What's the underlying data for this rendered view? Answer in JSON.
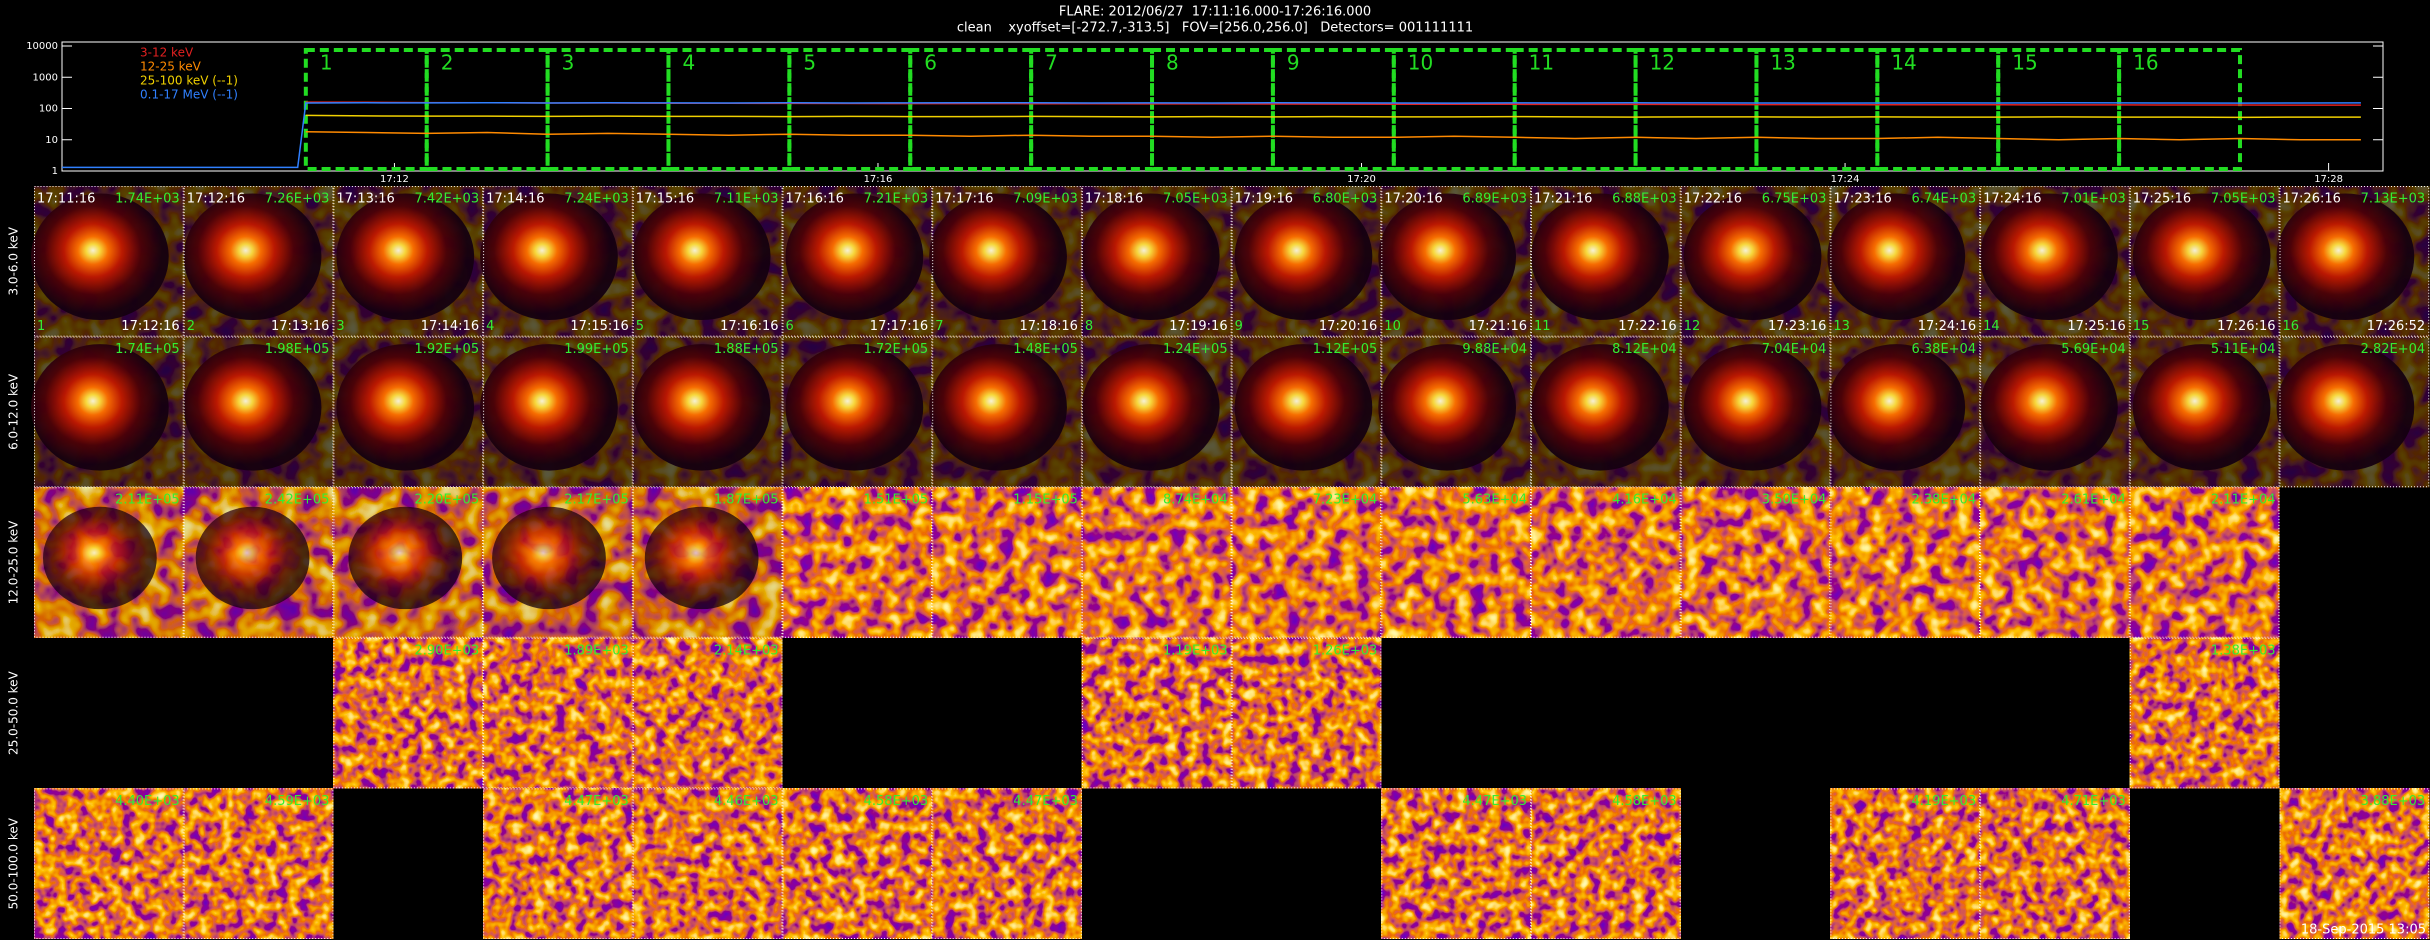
{
  "header": {
    "title": "FLARE: 2012/06/27  17:11:16.000-17:26:16.000",
    "subtitle": "clean    xyoffset=[-272.7,-313.5]   FOV=[256.0,256.0]   Detectors= 001111111"
  },
  "chart_data": {
    "type": "line",
    "log_y": true,
    "ylim": [
      1,
      10000
    ],
    "yticks": [
      1,
      10,
      100,
      1000,
      10000
    ],
    "xlim": [
      1029.25,
      1048.45
    ],
    "xticks": [
      {
        "value": 1032,
        "label": "17:12"
      },
      {
        "value": 1036,
        "label": "17:16"
      },
      {
        "value": 1040,
        "label": "17:20"
      },
      {
        "value": 1044,
        "label": "17:24"
      },
      {
        "value": 1048,
        "label": "17:28"
      }
    ],
    "x": [
      1029.25,
      1030,
      1031,
      1031.2,
      1031.267,
      1031.767,
      1032.267,
      1032.767,
      1033.267,
      1033.767,
      1034.267,
      1034.767,
      1035.267,
      1035.767,
      1036.267,
      1036.767,
      1037.267,
      1037.767,
      1038.267,
      1038.767,
      1039.267,
      1039.767,
      1040.267,
      1040.767,
      1041.267,
      1041.767,
      1042.267,
      1042.767,
      1043.267,
      1043.767,
      1044.267,
      1044.767,
      1045.267,
      1045.767,
      1046.267,
      1046.767,
      1047.267,
      1047.767,
      1048.267
    ],
    "series": [
      {
        "name": "3-12 keV",
        "color": "#e02020",
        "values": [
          null,
          null,
          null,
          null,
          160,
          158,
          155,
          152,
          150,
          150,
          148,
          147,
          146,
          145,
          144,
          143,
          142,
          141,
          140,
          140,
          139,
          138,
          137,
          137,
          136,
          135,
          135,
          134,
          133,
          133,
          132,
          131,
          131,
          130,
          130,
          129,
          129,
          128,
          128
        ]
      },
      {
        "name": "12-25 keV",
        "color": "#ff8a00",
        "values": [
          null,
          null,
          null,
          null,
          18,
          17,
          16,
          17,
          15,
          16,
          15,
          14,
          15,
          14,
          14,
          13,
          14,
          13,
          13,
          12,
          13,
          12,
          12,
          13,
          12,
          11,
          12,
          11,
          12,
          11,
          11,
          12,
          11,
          10,
          11,
          10,
          11,
          10,
          10
        ]
      },
      {
        "name": "25-100 keV (--1)",
        "color": "#f0d000",
        "values": [
          null,
          null,
          null,
          null,
          60,
          58,
          57,
          57,
          56,
          57,
          56,
          56,
          55,
          56,
          55,
          55,
          56,
          55,
          54,
          55,
          54,
          55,
          54,
          54,
          55,
          54,
          53,
          54,
          54,
          53,
          54,
          53,
          53,
          54,
          53,
          53,
          52,
          53,
          53
        ]
      },
      {
        "name": "0.1-17 MeV (--1)",
        "color": "#3080ff",
        "values": [
          1.3,
          1.3,
          1.3,
          1.3,
          150,
          152,
          151,
          153,
          150,
          152,
          151,
          150,
          152,
          150,
          151,
          153,
          152,
          150,
          151,
          150,
          152,
          151,
          150,
          149,
          151,
          150,
          152,
          151,
          150,
          149,
          150,
          151,
          150,
          152,
          151,
          150,
          149,
          150,
          151
        ]
      }
    ],
    "interval_color": "#22dd22",
    "intervals": [
      {
        "label": "1",
        "start": 1031.267,
        "end": 1032.267
      },
      {
        "label": "2",
        "start": 1032.267,
        "end": 1033.267
      },
      {
        "label": "3",
        "start": 1033.267,
        "end": 1034.267
      },
      {
        "label": "4",
        "start": 1034.267,
        "end": 1035.267
      },
      {
        "label": "5",
        "start": 1035.267,
        "end": 1036.267
      },
      {
        "label": "6",
        "start": 1036.267,
        "end": 1037.267
      },
      {
        "label": "7",
        "start": 1037.267,
        "end": 1038.267
      },
      {
        "label": "8",
        "start": 1038.267,
        "end": 1039.267
      },
      {
        "label": "9",
        "start": 1039.267,
        "end": 1040.267
      },
      {
        "label": "10",
        "start": 1040.267,
        "end": 1041.267
      },
      {
        "label": "11",
        "start": 1041.267,
        "end": 1042.267
      },
      {
        "label": "12",
        "start": 1042.267,
        "end": 1043.267
      },
      {
        "label": "13",
        "start": 1043.267,
        "end": 1044.267
      },
      {
        "label": "14",
        "start": 1044.267,
        "end": 1045.267
      },
      {
        "label": "15",
        "start": 1045.267,
        "end": 1046.267
      },
      {
        "label": "16",
        "start": 1046.267,
        "end": 1047.267
      }
    ]
  },
  "panels": {
    "rows": [
      {
        "label": "3.0-6.0 keV",
        "cells": [
          {
            "index": "1",
            "start": "17:11:16",
            "end": "17:12:16",
            "value": "1.74E+03"
          },
          {
            "index": "2",
            "start": "17:12:16",
            "end": "17:13:16",
            "value": "7.26E+03"
          },
          {
            "index": "3",
            "start": "17:13:16",
            "end": "17:14:16",
            "value": "7.42E+03"
          },
          {
            "index": "4",
            "start": "17:14:16",
            "end": "17:15:16",
            "value": "7.24E+03"
          },
          {
            "index": "5",
            "start": "17:15:16",
            "end": "17:16:16",
            "value": "7.11E+03"
          },
          {
            "index": "6",
            "start": "17:16:16",
            "end": "17:17:16",
            "value": "7.21E+03"
          },
          {
            "index": "7",
            "start": "17:17:16",
            "end": "17:18:16",
            "value": "7.09E+03"
          },
          {
            "index": "8",
            "start": "17:18:16",
            "end": "17:19:16",
            "value": "7.05E+03"
          },
          {
            "index": "9",
            "start": "17:19:16",
            "end": "17:20:16",
            "value": "6.80E+03"
          },
          {
            "index": "10",
            "start": "17:20:16",
            "end": "17:21:16",
            "value": "6.89E+03"
          },
          {
            "index": "11",
            "start": "17:21:16",
            "end": "17:22:16",
            "value": "6.88E+03"
          },
          {
            "index": "12",
            "start": "17:22:16",
            "end": "17:23:16",
            "value": "6.75E+03"
          },
          {
            "index": "13",
            "start": "17:23:16",
            "end": "17:24:16",
            "value": "6.74E+03"
          },
          {
            "index": "14",
            "start": "17:24:16",
            "end": "17:25:16",
            "value": "7.01E+03"
          },
          {
            "index": "15",
            "start": "17:25:16",
            "end": "17:26:16",
            "value": "7.05E+03"
          },
          {
            "index": "16",
            "start": "17:26:16",
            "end": "17:26:52",
            "value": "7.13E+03"
          }
        ]
      },
      {
        "label": "6.0-12.0 keV",
        "cells": [
          {
            "value": "1.74E+05"
          },
          {
            "value": "1.98E+05"
          },
          {
            "value": "1.92E+05"
          },
          {
            "value": "1.99E+05"
          },
          {
            "value": "1.88E+05"
          },
          {
            "value": "1.72E+05"
          },
          {
            "value": "1.48E+05"
          },
          {
            "value": "1.24E+05"
          },
          {
            "value": "1.12E+05"
          },
          {
            "value": "9.88E+04"
          },
          {
            "value": "8.12E+04"
          },
          {
            "value": "7.04E+04"
          },
          {
            "value": "6.38E+04"
          },
          {
            "value": "5.69E+04"
          },
          {
            "value": "5.11E+04"
          },
          {
            "value": "2.82E+04"
          }
        ]
      },
      {
        "label": "12.0-25.0 keV",
        "cells": [
          {
            "value": "2.11E+05"
          },
          {
            "value": "2.42E+05"
          },
          {
            "value": "2.20E+05"
          },
          {
            "value": "2.17E+05"
          },
          {
            "value": "1.87E+05"
          },
          {
            "value": "1.51E+05"
          },
          {
            "value": "1.15E+05"
          },
          {
            "value": "8.74E+04"
          },
          {
            "value": "7.23E+04"
          },
          {
            "value": "5.63E+04"
          },
          {
            "value": "4.16E+04"
          },
          {
            "value": "3.50E+04"
          },
          {
            "value": "2.38E+04"
          },
          {
            "value": "2.61E+04"
          },
          {
            "value": "2.11E+04"
          },
          null
        ]
      },
      {
        "label": "25.0-50.0 keV",
        "cells": [
          null,
          null,
          {
            "value": "2.90E+03"
          },
          {
            "value": "1.89E+03"
          },
          {
            "value": "2.14E+03"
          },
          null,
          null,
          {
            "value": "1.19E+03"
          },
          {
            "value": "1.26E+03"
          },
          null,
          null,
          null,
          null,
          null,
          {
            "value": "1.38E+03"
          },
          null
        ]
      },
      {
        "label": "50.0-100.0 keV",
        "cells": [
          {
            "value": "4.40E+03"
          },
          {
            "value": "4.59E+03"
          },
          null,
          {
            "value": "4.47E+03"
          },
          {
            "value": "4.46E+03"
          },
          {
            "value": "4.58E+03"
          },
          {
            "value": "4.47E+03"
          },
          null,
          null,
          {
            "value": "4.47E+03"
          },
          {
            "value": "4.58E+03"
          },
          null,
          {
            "value": "4.19E+03"
          },
          {
            "value": "4.71E+03"
          },
          null,
          {
            "value": "3.88E+03"
          }
        ]
      }
    ]
  },
  "footer": "18-Sep-2015 13:05"
}
